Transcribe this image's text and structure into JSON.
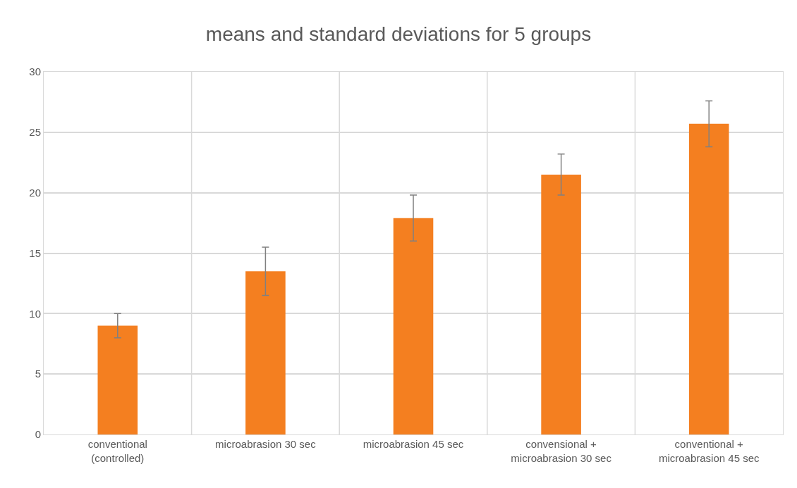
{
  "chart_data": {
    "type": "bar",
    "title": "means and standard deviations for 5 groups",
    "categories": [
      "conventional (controlled)",
      "microabrasion 30 sec",
      "microabrasion 45 sec",
      "convensional + microabrasion 30 sec",
      "conventional + microabrasion 45 sec"
    ],
    "values": [
      9.0,
      13.5,
      17.9,
      21.5,
      25.7
    ],
    "errors": [
      1.0,
      2.0,
      1.9,
      1.7,
      1.9
    ],
    "color": "#f47f20",
    "ylim": [
      0,
      30
    ],
    "yticks": [
      0,
      5,
      10,
      15,
      20,
      25,
      30
    ],
    "grid": true
  }
}
